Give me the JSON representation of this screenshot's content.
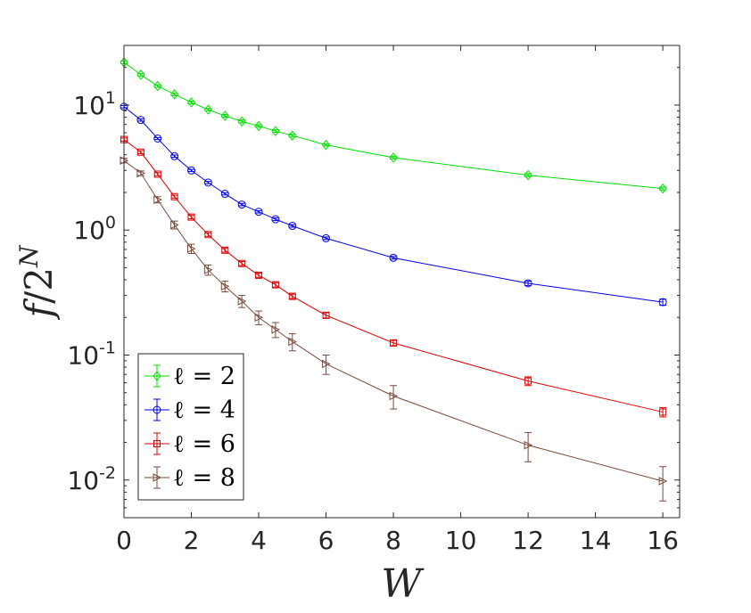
{
  "chart_data": {
    "type": "line",
    "xscale": "linear",
    "yscale": "log",
    "xlim": [
      0,
      16.5
    ],
    "ylim": [
      0.005,
      30
    ],
    "xticks": [
      {
        "value": 0,
        "label": "0"
      },
      {
        "value": 2,
        "label": "2"
      },
      {
        "value": 4,
        "label": "4"
      },
      {
        "value": 6,
        "label": "6"
      },
      {
        "value": 8,
        "label": "8"
      },
      {
        "value": 10,
        "label": "10"
      },
      {
        "value": 12,
        "label": "12"
      },
      {
        "value": 14,
        "label": "14"
      },
      {
        "value": 16,
        "label": "16"
      }
    ],
    "yticks": [
      {
        "value": 0.01,
        "base": "10",
        "exp": "-2"
      },
      {
        "value": 0.1,
        "base": "10",
        "exp": "-1"
      },
      {
        "value": 1,
        "base": "10",
        "exp": "0"
      },
      {
        "value": 10,
        "base": "10",
        "exp": "1"
      }
    ],
    "xlabel": "W",
    "ylabel": {
      "f": "f",
      "slash": "/2",
      "sup": "N"
    },
    "legend_position": "bottom-left",
    "grid": false,
    "series": [
      {
        "name": "ℓ = 2",
        "color": "#00e000",
        "marker": "diamond",
        "points": [
          {
            "x": 0,
            "y": 22.0,
            "err": 0.5
          },
          {
            "x": 0.5,
            "y": 17.5,
            "err": 0.4
          },
          {
            "x": 1,
            "y": 14.2,
            "err": 0.3
          },
          {
            "x": 1.5,
            "y": 12.2,
            "err": 0.3
          },
          {
            "x": 2,
            "y": 10.5,
            "err": 0.25
          },
          {
            "x": 2.5,
            "y": 9.2,
            "err": 0.2
          },
          {
            "x": 3,
            "y": 8.2,
            "err": 0.2
          },
          {
            "x": 3.5,
            "y": 7.4,
            "err": 0.2
          },
          {
            "x": 4,
            "y": 6.8,
            "err": 0.15
          },
          {
            "x": 4.5,
            "y": 6.2,
            "err": 0.15
          },
          {
            "x": 5,
            "y": 5.7,
            "err": 0.15
          },
          {
            "x": 6,
            "y": 4.8,
            "err": 0.1
          },
          {
            "x": 8,
            "y": 3.8,
            "err": 0.1
          },
          {
            "x": 12,
            "y": 2.75,
            "err": 0.08
          },
          {
            "x": 16,
            "y": 2.15,
            "err": 0.06
          }
        ]
      },
      {
        "name": "ℓ = 4",
        "color": "#0000ee",
        "marker": "circle",
        "points": [
          {
            "x": 0,
            "y": 9.7,
            "err": 0.2
          },
          {
            "x": 0.5,
            "y": 7.6,
            "err": 0.15
          },
          {
            "x": 1,
            "y": 5.4,
            "err": 0.1
          },
          {
            "x": 1.5,
            "y": 3.9,
            "err": 0.08
          },
          {
            "x": 2,
            "y": 3.0,
            "err": 0.06
          },
          {
            "x": 2.5,
            "y": 2.4,
            "err": 0.05
          },
          {
            "x": 3,
            "y": 1.95,
            "err": 0.04
          },
          {
            "x": 3.5,
            "y": 1.6,
            "err": 0.035
          },
          {
            "x": 4,
            "y": 1.4,
            "err": 0.03
          },
          {
            "x": 4.5,
            "y": 1.22,
            "err": 0.03
          },
          {
            "x": 5,
            "y": 1.08,
            "err": 0.025
          },
          {
            "x": 6,
            "y": 0.86,
            "err": 0.02
          },
          {
            "x": 8,
            "y": 0.6,
            "err": 0.015
          },
          {
            "x": 12,
            "y": 0.375,
            "err": 0.015
          },
          {
            "x": 16,
            "y": 0.265,
            "err": 0.015
          }
        ]
      },
      {
        "name": "ℓ = 6",
        "color": "#e00000",
        "marker": "square",
        "points": [
          {
            "x": 0,
            "y": 5.3,
            "err": 0.15
          },
          {
            "x": 0.5,
            "y": 4.2,
            "err": 0.12
          },
          {
            "x": 1,
            "y": 2.8,
            "err": 0.08
          },
          {
            "x": 1.5,
            "y": 1.85,
            "err": 0.05
          },
          {
            "x": 2,
            "y": 1.27,
            "err": 0.04
          },
          {
            "x": 2.5,
            "y": 0.92,
            "err": 0.03
          },
          {
            "x": 3,
            "y": 0.69,
            "err": 0.025
          },
          {
            "x": 3.5,
            "y": 0.54,
            "err": 0.02
          },
          {
            "x": 4,
            "y": 0.435,
            "err": 0.017
          },
          {
            "x": 4.5,
            "y": 0.365,
            "err": 0.015
          },
          {
            "x": 5,
            "y": 0.295,
            "err": 0.012
          },
          {
            "x": 6,
            "y": 0.208,
            "err": 0.01
          },
          {
            "x": 8,
            "y": 0.125,
            "err": 0.006
          },
          {
            "x": 12,
            "y": 0.062,
            "err": 0.005
          },
          {
            "x": 16,
            "y": 0.035,
            "err": 0.003
          }
        ]
      },
      {
        "name": "ℓ = 8",
        "color": "#7a4a3c",
        "marker": "triangle-right",
        "points": [
          {
            "x": 0,
            "y": 3.6,
            "err": 0.15
          },
          {
            "x": 0.5,
            "y": 2.85,
            "err": 0.12
          },
          {
            "x": 1,
            "y": 1.75,
            "err": 0.1
          },
          {
            "x": 1.5,
            "y": 1.1,
            "err": 0.08
          },
          {
            "x": 2,
            "y": 0.71,
            "err": 0.06
          },
          {
            "x": 2.5,
            "y": 0.48,
            "err": 0.045
          },
          {
            "x": 3,
            "y": 0.355,
            "err": 0.035
          },
          {
            "x": 3.5,
            "y": 0.27,
            "err": 0.03
          },
          {
            "x": 4,
            "y": 0.2,
            "err": 0.025
          },
          {
            "x": 4.5,
            "y": 0.16,
            "err": 0.022
          },
          {
            "x": 5,
            "y": 0.128,
            "err": 0.02
          },
          {
            "x": 6,
            "y": 0.085,
            "err": 0.015
          },
          {
            "x": 8,
            "y": 0.047,
            "err": 0.01
          },
          {
            "x": 12,
            "y": 0.019,
            "err": 0.005
          },
          {
            "x": 16,
            "y": 0.0098,
            "err": 0.003
          }
        ]
      }
    ]
  }
}
